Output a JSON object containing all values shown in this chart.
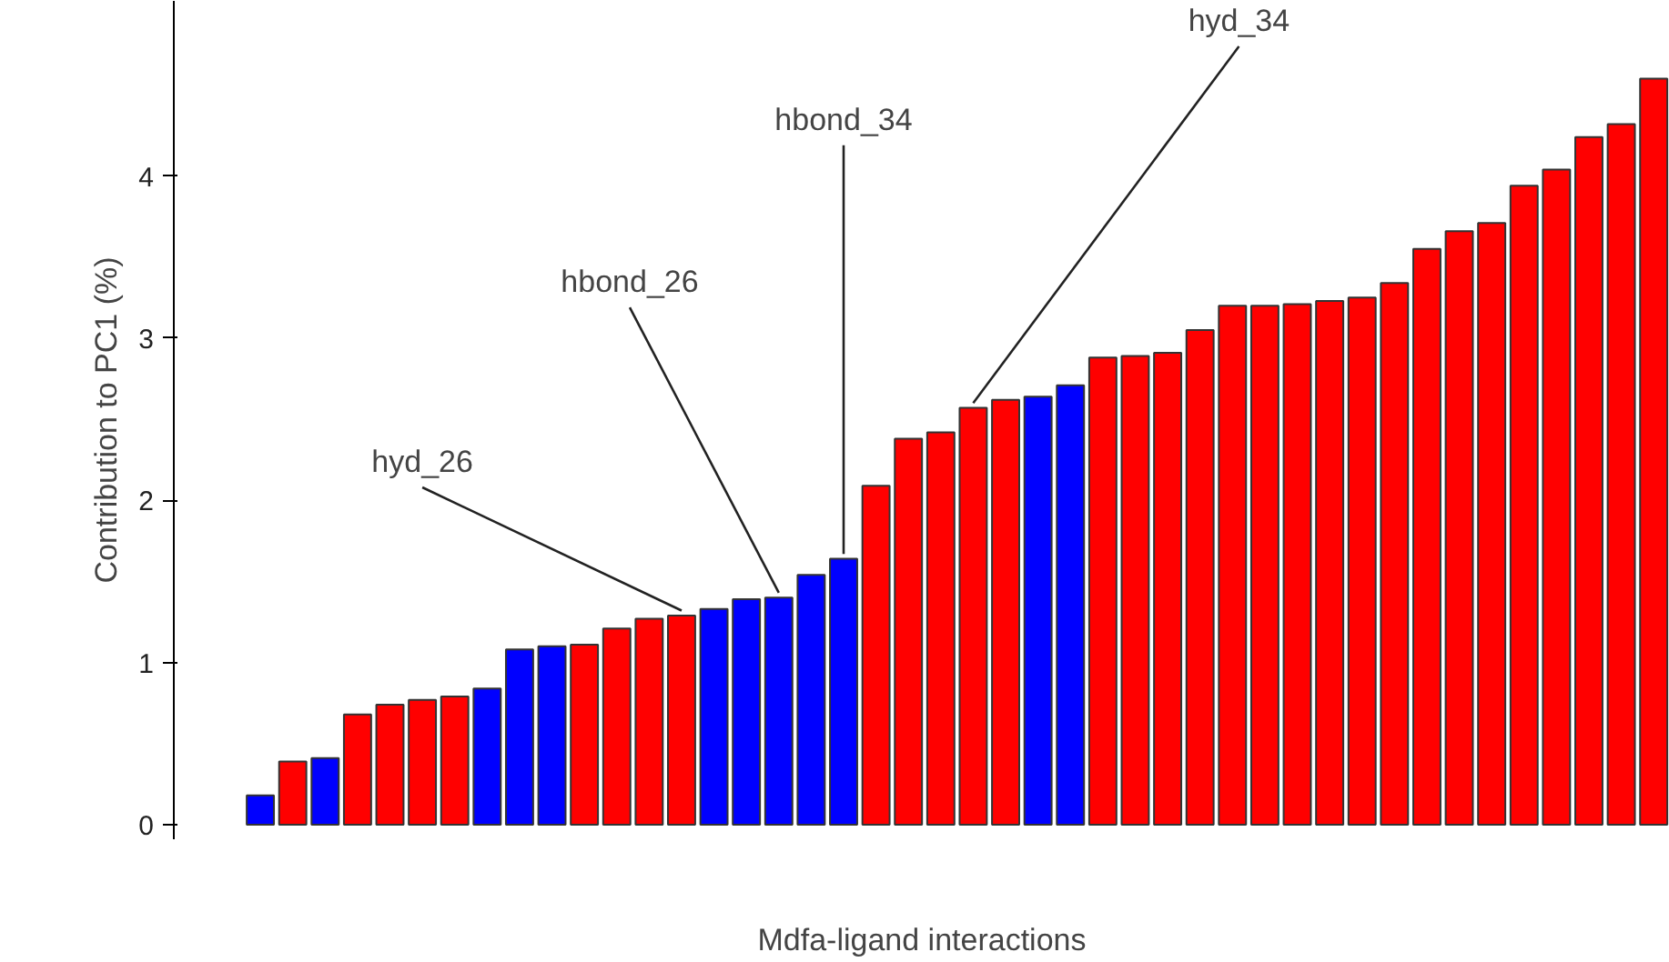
{
  "chart_data": {
    "type": "bar",
    "xlabel": "Mdfa-ligand interactions",
    "ylabel": "Contribution to PC1 (%)",
    "categories": [
      null,
      null,
      null,
      null,
      null,
      null,
      null,
      null,
      null,
      null,
      null,
      null,
      null,
      null,
      null,
      null,
      null,
      null,
      null,
      null,
      null,
      null,
      null,
      null,
      null,
      null,
      null,
      null,
      null,
      null,
      null,
      null,
      null,
      null,
      null,
      null,
      null,
      null,
      null,
      null,
      null,
      null,
      null,
      null
    ],
    "values": [
      0.18,
      0.39,
      0.41,
      0.68,
      0.74,
      0.77,
      0.79,
      0.84,
      1.08,
      1.1,
      1.11,
      1.21,
      1.27,
      1.29,
      1.33,
      1.39,
      1.4,
      1.54,
      1.64,
      2.09,
      2.38,
      2.42,
      2.57,
      2.62,
      2.64,
      2.71,
      2.88,
      2.89,
      2.91,
      3.05,
      3.2,
      3.2,
      3.21,
      3.23,
      3.25,
      3.34,
      3.55,
      3.66,
      3.71,
      3.94,
      4.04,
      4.24,
      4.32,
      4.6
    ],
    "colors": [
      "#0000ff",
      "#ff0000",
      "#0000ff",
      "#ff0000",
      "#ff0000",
      "#ff0000",
      "#ff0000",
      "#0000ff",
      "#0000ff",
      "#0000ff",
      "#ff0000",
      "#ff0000",
      "#ff0000",
      "#ff0000",
      "#0000ff",
      "#0000ff",
      "#0000ff",
      "#0000ff",
      "#0000ff",
      "#ff0000",
      "#ff0000",
      "#ff0000",
      "#ff0000",
      "#ff0000",
      "#0000ff",
      "#0000ff",
      "#ff0000",
      "#ff0000",
      "#ff0000",
      "#ff0000",
      "#ff0000",
      "#ff0000",
      "#ff0000",
      "#ff0000",
      "#ff0000",
      "#ff0000",
      "#ff0000",
      "#ff0000",
      "#ff0000",
      "#ff0000",
      "#ff0000",
      "#ff0000",
      "#ff0000",
      "#ff0000"
    ],
    "ylim": [
      -0.09,
      5.08
    ],
    "yticks": [
      0,
      1,
      2,
      3,
      4
    ],
    "grid": false,
    "annotations": [
      "hyd_26",
      "hbond_26",
      "hbond_34",
      "hyd_34"
    ]
  }
}
